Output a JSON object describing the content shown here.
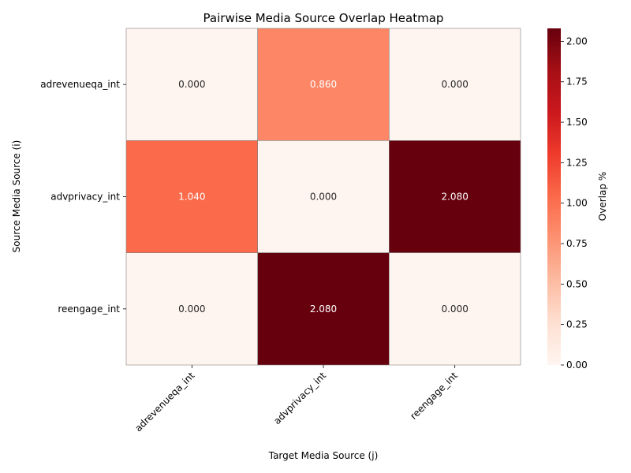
{
  "chart_data": {
    "type": "heatmap",
    "title": "Pairwise Media Source Overlap Heatmap",
    "xlabel": "Target Media Source (j)",
    "ylabel": "Source Media Source (i)",
    "x_categories": [
      "adrevenueqa_int",
      "advprivacy_int",
      "reengage_int"
    ],
    "y_categories": [
      "adrevenueqa_int",
      "advprivacy_int",
      "reengage_int"
    ],
    "values": [
      [
        0.0,
        0.86,
        0.0
      ],
      [
        1.04,
        0.0,
        2.08
      ],
      [
        0.0,
        2.08,
        0.0
      ]
    ],
    "value_format_decimals": 3,
    "colorbar": {
      "label": "Overlap %",
      "range": [
        0,
        2.08
      ],
      "ticks": [
        "0.00",
        "0.25",
        "0.50",
        "0.75",
        "1.00",
        "1.25",
        "1.50",
        "1.75",
        "2.00"
      ],
      "colormap": "Reds"
    }
  }
}
